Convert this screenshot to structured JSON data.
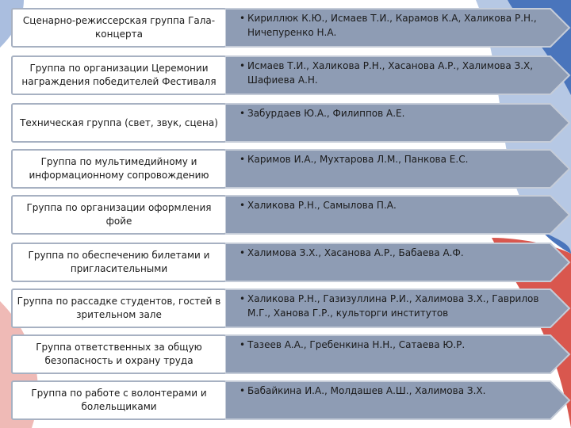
{
  "groups": [
    {
      "label": "Сценарно-режиссерская группа Гала-концерта",
      "members": "Кириллюк К.Ю., Исмаев Т.И., Карамов К.А, Халикова Р.Н., Ничепуренко Н.А."
    },
    {
      "label": "Группа по организации Церемонии награждения победителей Фестиваля",
      "members": "Исмаев Т.И., Халикова Р.Н., Хасанова А.Р., Халимова З.Х, Шафиева А.Н."
    },
    {
      "label": "Техническая группа (свет, звук, сцена)",
      "members": "Забурдаев Ю.А., Филиппов А.Е."
    },
    {
      "label": "Группа по мультимедийному и информационному сопровождению",
      "members": "Каримов И.А., Мухтарова Л.М., Панкова Е.С."
    },
    {
      "label": "Группа по организации оформления фойе",
      "members": "Халикова Р.Н., Самылова П.А."
    },
    {
      "label": "Группа по обеспечению билетами и пригласительными",
      "members": "Халимова З.Х., Хасанова А.Р., Бабаева А.Ф."
    },
    {
      "label": "Группа по рассадке студентов, гостей в зрительном зале",
      "members": "Халикова Р.Н., Газизуллина Р.И., Халимова З.Х., Гаврилов М.Г., Ханова Г.Р., культорги институтов"
    },
    {
      "label": "Группа ответственных за общую безопасность и охрану труда",
      "members": "Тазеев А.А., Гребенкина Н.Н., Сатаева Ю.Р."
    },
    {
      "label": "Группа по работе с волонтерами и болельщиками",
      "members": "Бабайкина И.А., Молдашев А.Ш., Халимова З.Х."
    }
  ],
  "colors": {
    "arrow_fill": "#8e9cb4",
    "arrow_stroke": "#c5ccd8",
    "label_border": "#a7b1c2",
    "flag_blue": "#1f4fa3",
    "flag_red": "#d23a2f"
  },
  "bullet_symbol": "•"
}
